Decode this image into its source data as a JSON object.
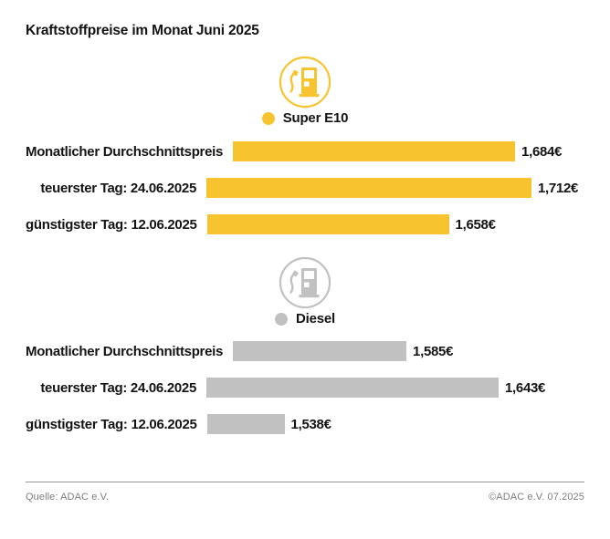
{
  "title": "Kraftstoffpreise im Monat Juni 2025",
  "footer": {
    "source": "Quelle: ADAC e.V.",
    "copyright": "©ADAC e.V. 07.2025"
  },
  "colors": {
    "super_e10_accent": "#F7C430",
    "diesel_accent": "#BDBDBD",
    "text": "#141414",
    "footer_text": "#7e7e7e"
  },
  "chart_data": [
    {
      "type": "bar",
      "orientation": "horizontal",
      "group": "Super E10",
      "icon": "fuel-pump-icon",
      "color": "#F7C430",
      "categories": [
        "Monatlicher Durchschnittspreis",
        "teuerster Tag: 24.06.2025",
        "günstigster Tag: 12.06.2025"
      ],
      "values": [
        1.684,
        1.712,
        1.658
      ],
      "value_labels": [
        "1,684€",
        "1,712€",
        "1,658€"
      ],
      "xlim": [
        1.5,
        1.75
      ],
      "grid": false,
      "axis_visible": false
    },
    {
      "type": "bar",
      "orientation": "horizontal",
      "group": "Diesel",
      "icon": "fuel-pump-icon",
      "color": "#C1C1C1",
      "categories": [
        "Monatlicher Durchschnittspreis",
        "teuerster Tag: 24.06.2025",
        "günstigster Tag: 12.06.2025"
      ],
      "values": [
        1.585,
        1.643,
        1.538
      ],
      "value_labels": [
        "1,585€",
        "1,643€",
        "1,538€"
      ],
      "xlim": [
        1.5,
        1.65
      ],
      "grid": false,
      "axis_visible": false
    }
  ]
}
